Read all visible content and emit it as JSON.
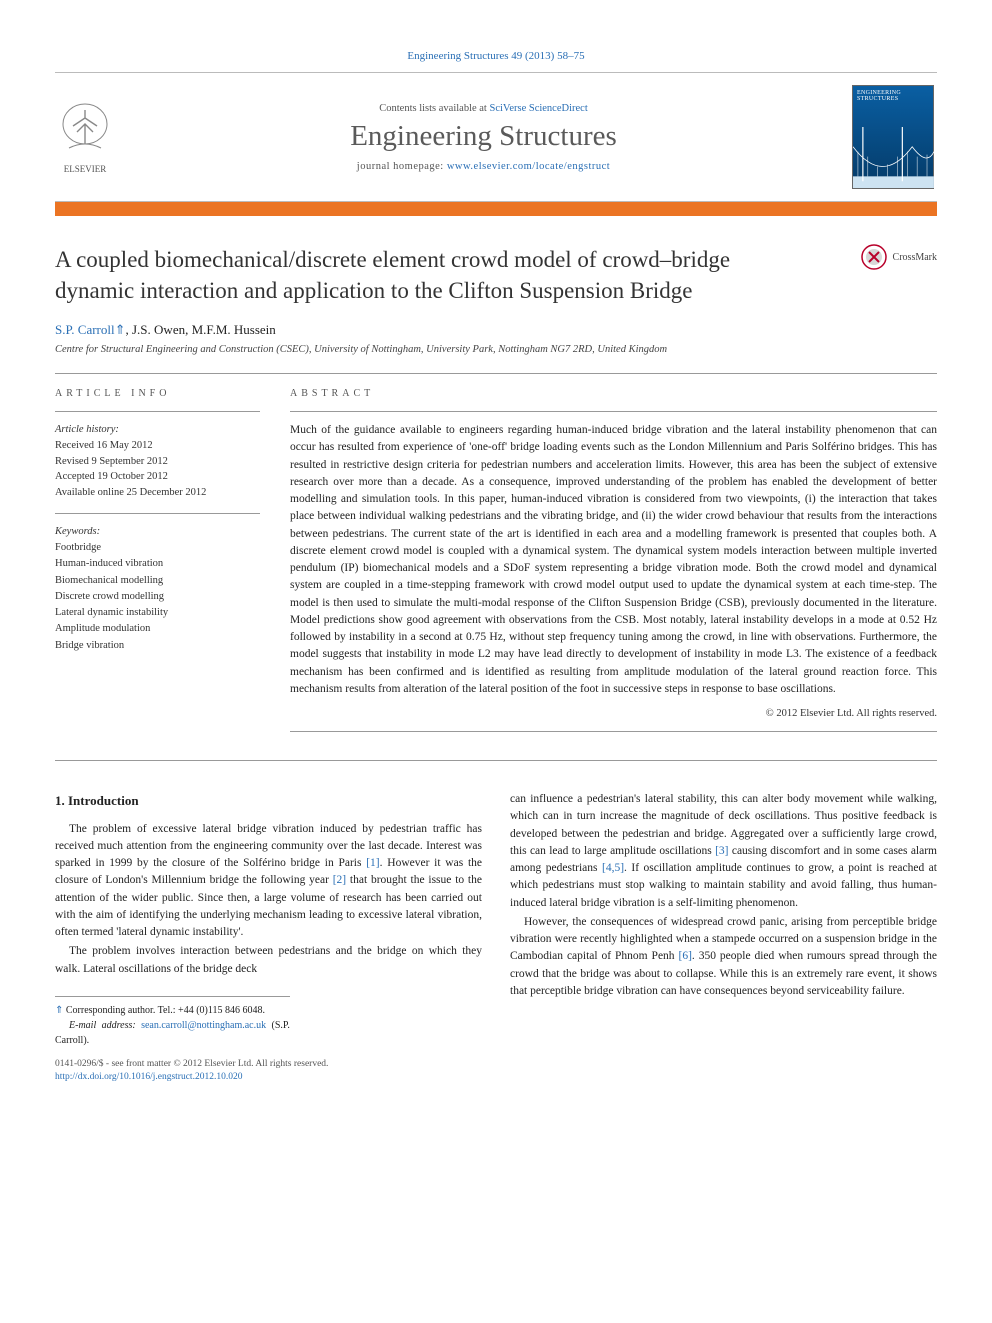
{
  "citation": {
    "journal_link": "Engineering Structures 49 (2013) 58–75"
  },
  "masthead": {
    "contents_prefix": "Contents lists available at ",
    "contents_link": "SciVerse ScienceDirect",
    "journal_name": "Engineering Structures",
    "homepage_prefix": "journal homepage: ",
    "homepage_url": "www.elsevier.com/locate/engstruct",
    "publisher": "ELSEVIER",
    "cover_label": "ENGINEERING STRUCTURES"
  },
  "article": {
    "title": "A coupled biomechanical/discrete element crowd model of crowd–bridge dynamic interaction and application to the Clifton Suspension Bridge",
    "crossmark": "CrossMark",
    "authors_html": "S.P. Carroll",
    "author_marker": "⇑",
    "authors_rest": ", J.S. Owen, M.F.M. Hussein",
    "affiliation": "Centre for Structural Engineering and Construction (CSEC), University of Nottingham, University Park, Nottingham NG7 2RD, United Kingdom"
  },
  "info": {
    "heading": "article info",
    "history_label": "Article history:",
    "received": "Received 16 May 2012",
    "revised": "Revised 9 September 2012",
    "accepted": "Accepted 19 October 2012",
    "online": "Available online 25 December 2012",
    "keywords_label": "Keywords:",
    "keywords": [
      "Footbridge",
      "Human-induced vibration",
      "Biomechanical modelling",
      "Discrete crowd modelling",
      "Lateral dynamic instability",
      "Amplitude modulation",
      "Bridge vibration"
    ]
  },
  "abstract": {
    "heading": "abstract",
    "text": "Much of the guidance available to engineers regarding human-induced bridge vibration and the lateral instability phenomenon that can occur has resulted from experience of 'one-off' bridge loading events such as the London Millennium and Paris Solférino bridges. This has resulted in restrictive design criteria for pedestrian numbers and acceleration limits. However, this area has been the subject of extensive research over more than a decade. As a consequence, improved understanding of the problem has enabled the development of better modelling and simulation tools. In this paper, human-induced vibration is considered from two viewpoints, (i) the interaction that takes place between individual walking pedestrians and the vibrating bridge, and (ii) the wider crowd behaviour that results from the interactions between pedestrians. The current state of the art is identified in each area and a modelling framework is presented that couples both. A discrete element crowd model is coupled with a dynamical system. The dynamical system models interaction between multiple inverted pendulum (IP) biomechanical models and a SDoF system representing a bridge vibration mode. Both the crowd model and dynamical system are coupled in a time-stepping framework with crowd model output used to update the dynamical system at each time-step. The model is then used to simulate the multi-modal response of the Clifton Suspension Bridge (CSB), previously documented in the literature. Model predictions show good agreement with observations from the CSB. Most notably, lateral instability develops in a mode at 0.52 Hz followed by instability in a second at 0.75 Hz, without step frequency tuning among the crowd, in line with observations. Furthermore, the model suggests that instability in mode L2 may have lead directly to development of instability in mode L3. The existence of a feedback mechanism has been confirmed and is identified as resulting from amplitude modulation of the lateral ground reaction force. This mechanism results from alteration of the lateral position of the foot in successive steps in response to base oscillations.",
    "copyright": "© 2012 Elsevier Ltd. All rights reserved."
  },
  "body": {
    "heading": "1. Introduction",
    "col1_p1": "The problem of excessive lateral bridge vibration induced by pedestrian traffic has received much attention from the engineering community over the last decade. Interest was sparked in 1999 by the closure of the Solférino bridge in Paris [1]. However it was the closure of London's Millennium bridge the following year [2] that brought the issue to the attention of the wider public. Since then, a large volume of research has been carried out with the aim of identifying the underlying mechanism leading to excessive lateral vibration, often termed 'lateral dynamic instability'.",
    "col1_p2": "The problem involves interaction between pedestrians and the bridge on which they walk. Lateral oscillations of the bridge deck",
    "col2_p1": "can influence a pedestrian's lateral stability, this can alter body movement while walking, which can in turn increase the magnitude of deck oscillations. Thus positive feedback is developed between the pedestrian and bridge. Aggregated over a sufficiently large crowd, this can lead to large amplitude oscillations [3] causing discomfort and in some cases alarm among pedestrians [4,5]. If oscillation amplitude continues to grow, a point is reached at which pedestrians must stop walking to maintain stability and avoid falling, thus human-induced lateral bridge vibration is a self-limiting phenomenon.",
    "col2_p2": "However, the consequences of widespread crowd panic, arising from perceptible bridge vibration were recently highlighted when a stampede occurred on a suspension bridge in the Cambodian capital of Phnom Penh [6]. 350 people died when rumours spread through the crowd that the bridge was about to collapse. While this is an extremely rare event, it shows that perceptible bridge vibration can have consequences beyond serviceability failure.",
    "ref1": "[1]",
    "ref2": "[2]",
    "ref3": "[3]",
    "ref45": "[4,5]",
    "ref6": "[6]"
  },
  "footer": {
    "corr_marker": "⇑",
    "corr_label": " Corresponding author. Tel.: +44 (0)115 846 6048.",
    "email_label": "E-mail address:",
    "email": "sean.carroll@nottingham.ac.uk",
    "email_suffix": " (S.P. Carroll).",
    "copyright_line": "0141-0296/$ - see front matter © 2012 Elsevier Ltd. All rights reserved.",
    "doi": "http://dx.doi.org/10.1016/j.engstruct.2012.10.020"
  },
  "colors": {
    "link": "#2a6fb5",
    "bar": "#eb7423",
    "cover_top": "#0a5fa3",
    "cover_bottom": "#043a67"
  }
}
